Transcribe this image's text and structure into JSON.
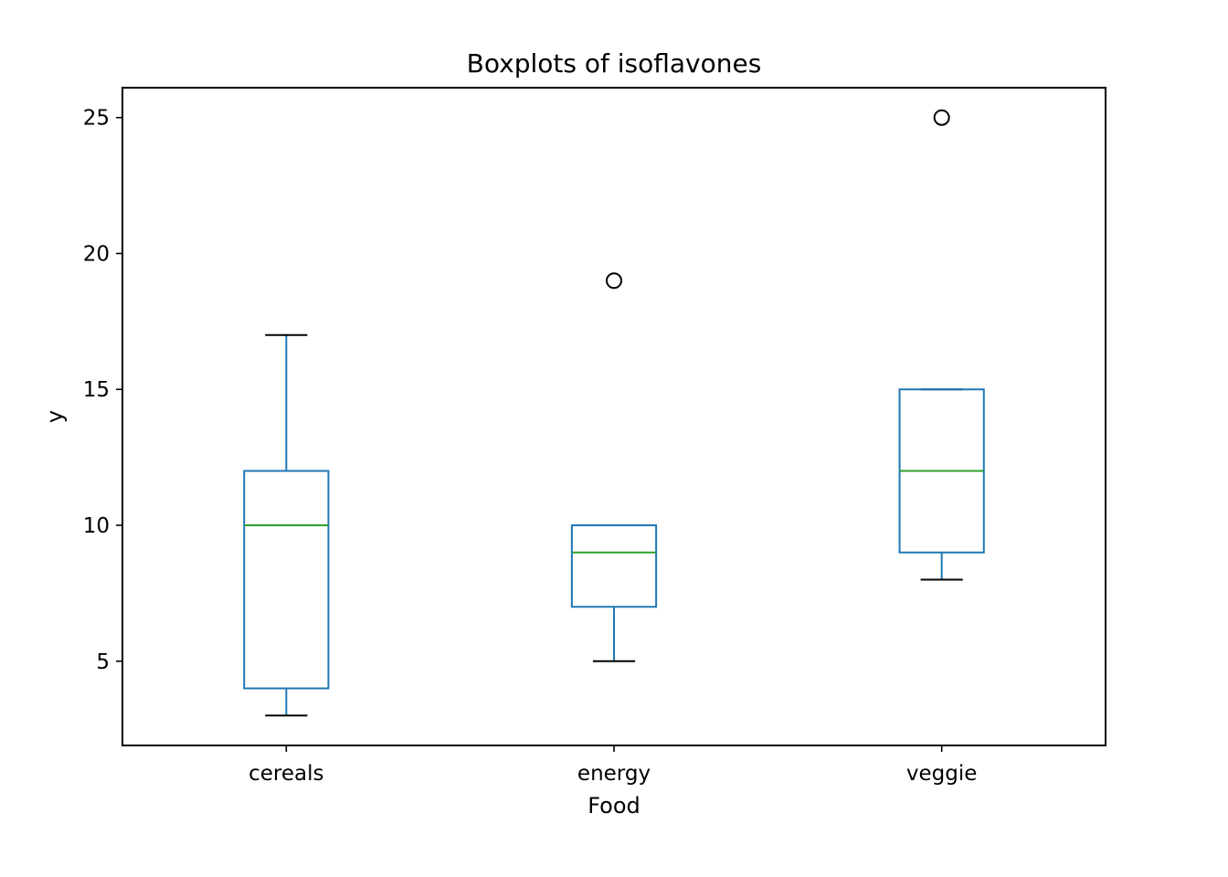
{
  "chart_data": {
    "type": "boxplot",
    "title": "Boxplots of isoflavones",
    "xlabel": "Food",
    "ylabel": "y",
    "ylim": [
      1.9,
      26.1
    ],
    "yticks": [
      5,
      10,
      15,
      20,
      25
    ],
    "grid": false,
    "categories": [
      "cereals",
      "energy",
      "veggie"
    ],
    "boxes": [
      {
        "category": "cereals",
        "whisker_low": 3,
        "q1": 4,
        "median": 10,
        "q3": 12,
        "whisker_high": 17,
        "outliers": []
      },
      {
        "category": "energy",
        "whisker_low": 5,
        "q1": 7,
        "median": 9,
        "q3": 10,
        "whisker_high": 10,
        "outliers": [
          19
        ]
      },
      {
        "category": "veggie",
        "whisker_low": 8,
        "q1": 9,
        "median": 12,
        "q3": 15,
        "whisker_high": 15,
        "outliers": [
          25
        ]
      }
    ],
    "colors": {
      "box": "#1f77b4",
      "whisker": "#1f77b4",
      "cap": "#000000",
      "median": "#2ca02c",
      "outlier": "#000000"
    }
  }
}
